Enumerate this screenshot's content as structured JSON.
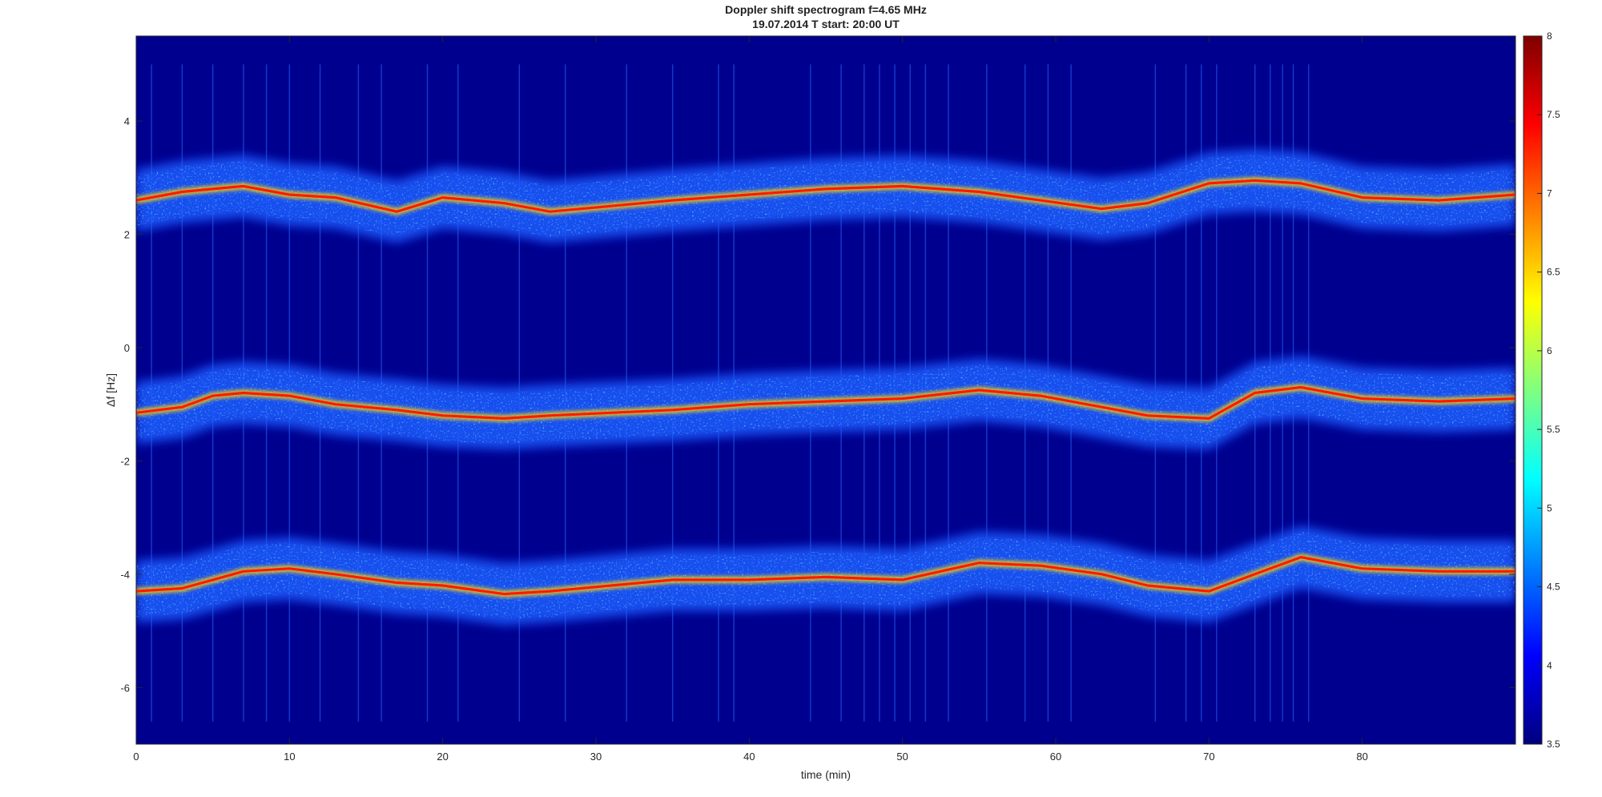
{
  "chart_data": {
    "type": "heatmap",
    "title_line1": "Doppler shift spectrogram f=4.65 MHz",
    "title_line2": "19.07.2014   T start: 20:00 UT",
    "xlabel": "time (min)",
    "ylabel": "Δf [Hz]",
    "xlim": [
      0,
      90
    ],
    "ylim": [
      -7,
      5.5
    ],
    "xticks": [
      "0",
      "10",
      "20",
      "30",
      "40",
      "50",
      "60",
      "70",
      "80"
    ],
    "yticks": [
      "-6",
      "-4",
      "-2",
      "0",
      "2",
      "4"
    ],
    "colorbar": {
      "range": [
        3.5,
        8
      ],
      "ticks": [
        "3.5",
        "4",
        "4.5",
        "5",
        "5.5",
        "6",
        "6.5",
        "7",
        "7.5",
        "8"
      ]
    },
    "colormap": [
      "#00007f",
      "#0000ff",
      "#00ffff",
      "#ffff00",
      "#ff0000",
      "#7f0000"
    ],
    "background_color": "#00008f",
    "traces": [
      {
        "time": [
          0,
          3,
          5,
          7,
          10,
          13,
          17,
          20,
          24,
          27,
          31,
          35,
          40,
          45,
          50,
          55,
          59,
          63,
          66,
          70,
          73,
          76,
          80,
          85,
          90
        ],
        "freq": [
          2.6,
          2.75,
          2.8,
          2.85,
          2.7,
          2.65,
          2.4,
          2.65,
          2.55,
          2.4,
          2.5,
          2.6,
          2.7,
          2.8,
          2.85,
          2.75,
          2.6,
          2.45,
          2.55,
          2.9,
          2.95,
          2.9,
          2.65,
          2.6,
          2.7
        ]
      },
      {
        "time": [
          0,
          3,
          5,
          7,
          10,
          13,
          17,
          20,
          24,
          27,
          31,
          35,
          40,
          45,
          50,
          55,
          59,
          63,
          66,
          70,
          73,
          76,
          80,
          85,
          90
        ],
        "freq": [
          -1.15,
          -1.05,
          -0.85,
          -0.8,
          -0.85,
          -1.0,
          -1.1,
          -1.2,
          -1.25,
          -1.2,
          -1.15,
          -1.1,
          -1.0,
          -0.95,
          -0.9,
          -0.75,
          -0.85,
          -1.05,
          -1.2,
          -1.25,
          -0.8,
          -0.7,
          -0.9,
          -0.95,
          -0.9
        ]
      },
      {
        "time": [
          0,
          3,
          5,
          7,
          10,
          13,
          17,
          20,
          24,
          27,
          31,
          35,
          40,
          45,
          50,
          55,
          59,
          63,
          66,
          70,
          73,
          76,
          80,
          85,
          90
        ],
        "freq": [
          -4.3,
          -4.25,
          -4.1,
          -3.95,
          -3.9,
          -4.0,
          -4.15,
          -4.2,
          -4.35,
          -4.3,
          -4.2,
          -4.1,
          -4.1,
          -4.05,
          -4.1,
          -3.8,
          -3.85,
          -4.0,
          -4.2,
          -4.3,
          -4.0,
          -3.7,
          -3.9,
          -3.95,
          -3.95
        ]
      }
    ],
    "spike_times": [
      1,
      3,
      5,
      7,
      8.5,
      10,
      12,
      14.5,
      16,
      19,
      21,
      25,
      28,
      32,
      35,
      38,
      39,
      44,
      46,
      47.5,
      48.5,
      49.5,
      50.5,
      51.5,
      53,
      55.5,
      58,
      59.5,
      61,
      66.5,
      68.5,
      69.5,
      70.5,
      73,
      74,
      74.8,
      75.5,
      76.5
    ]
  }
}
